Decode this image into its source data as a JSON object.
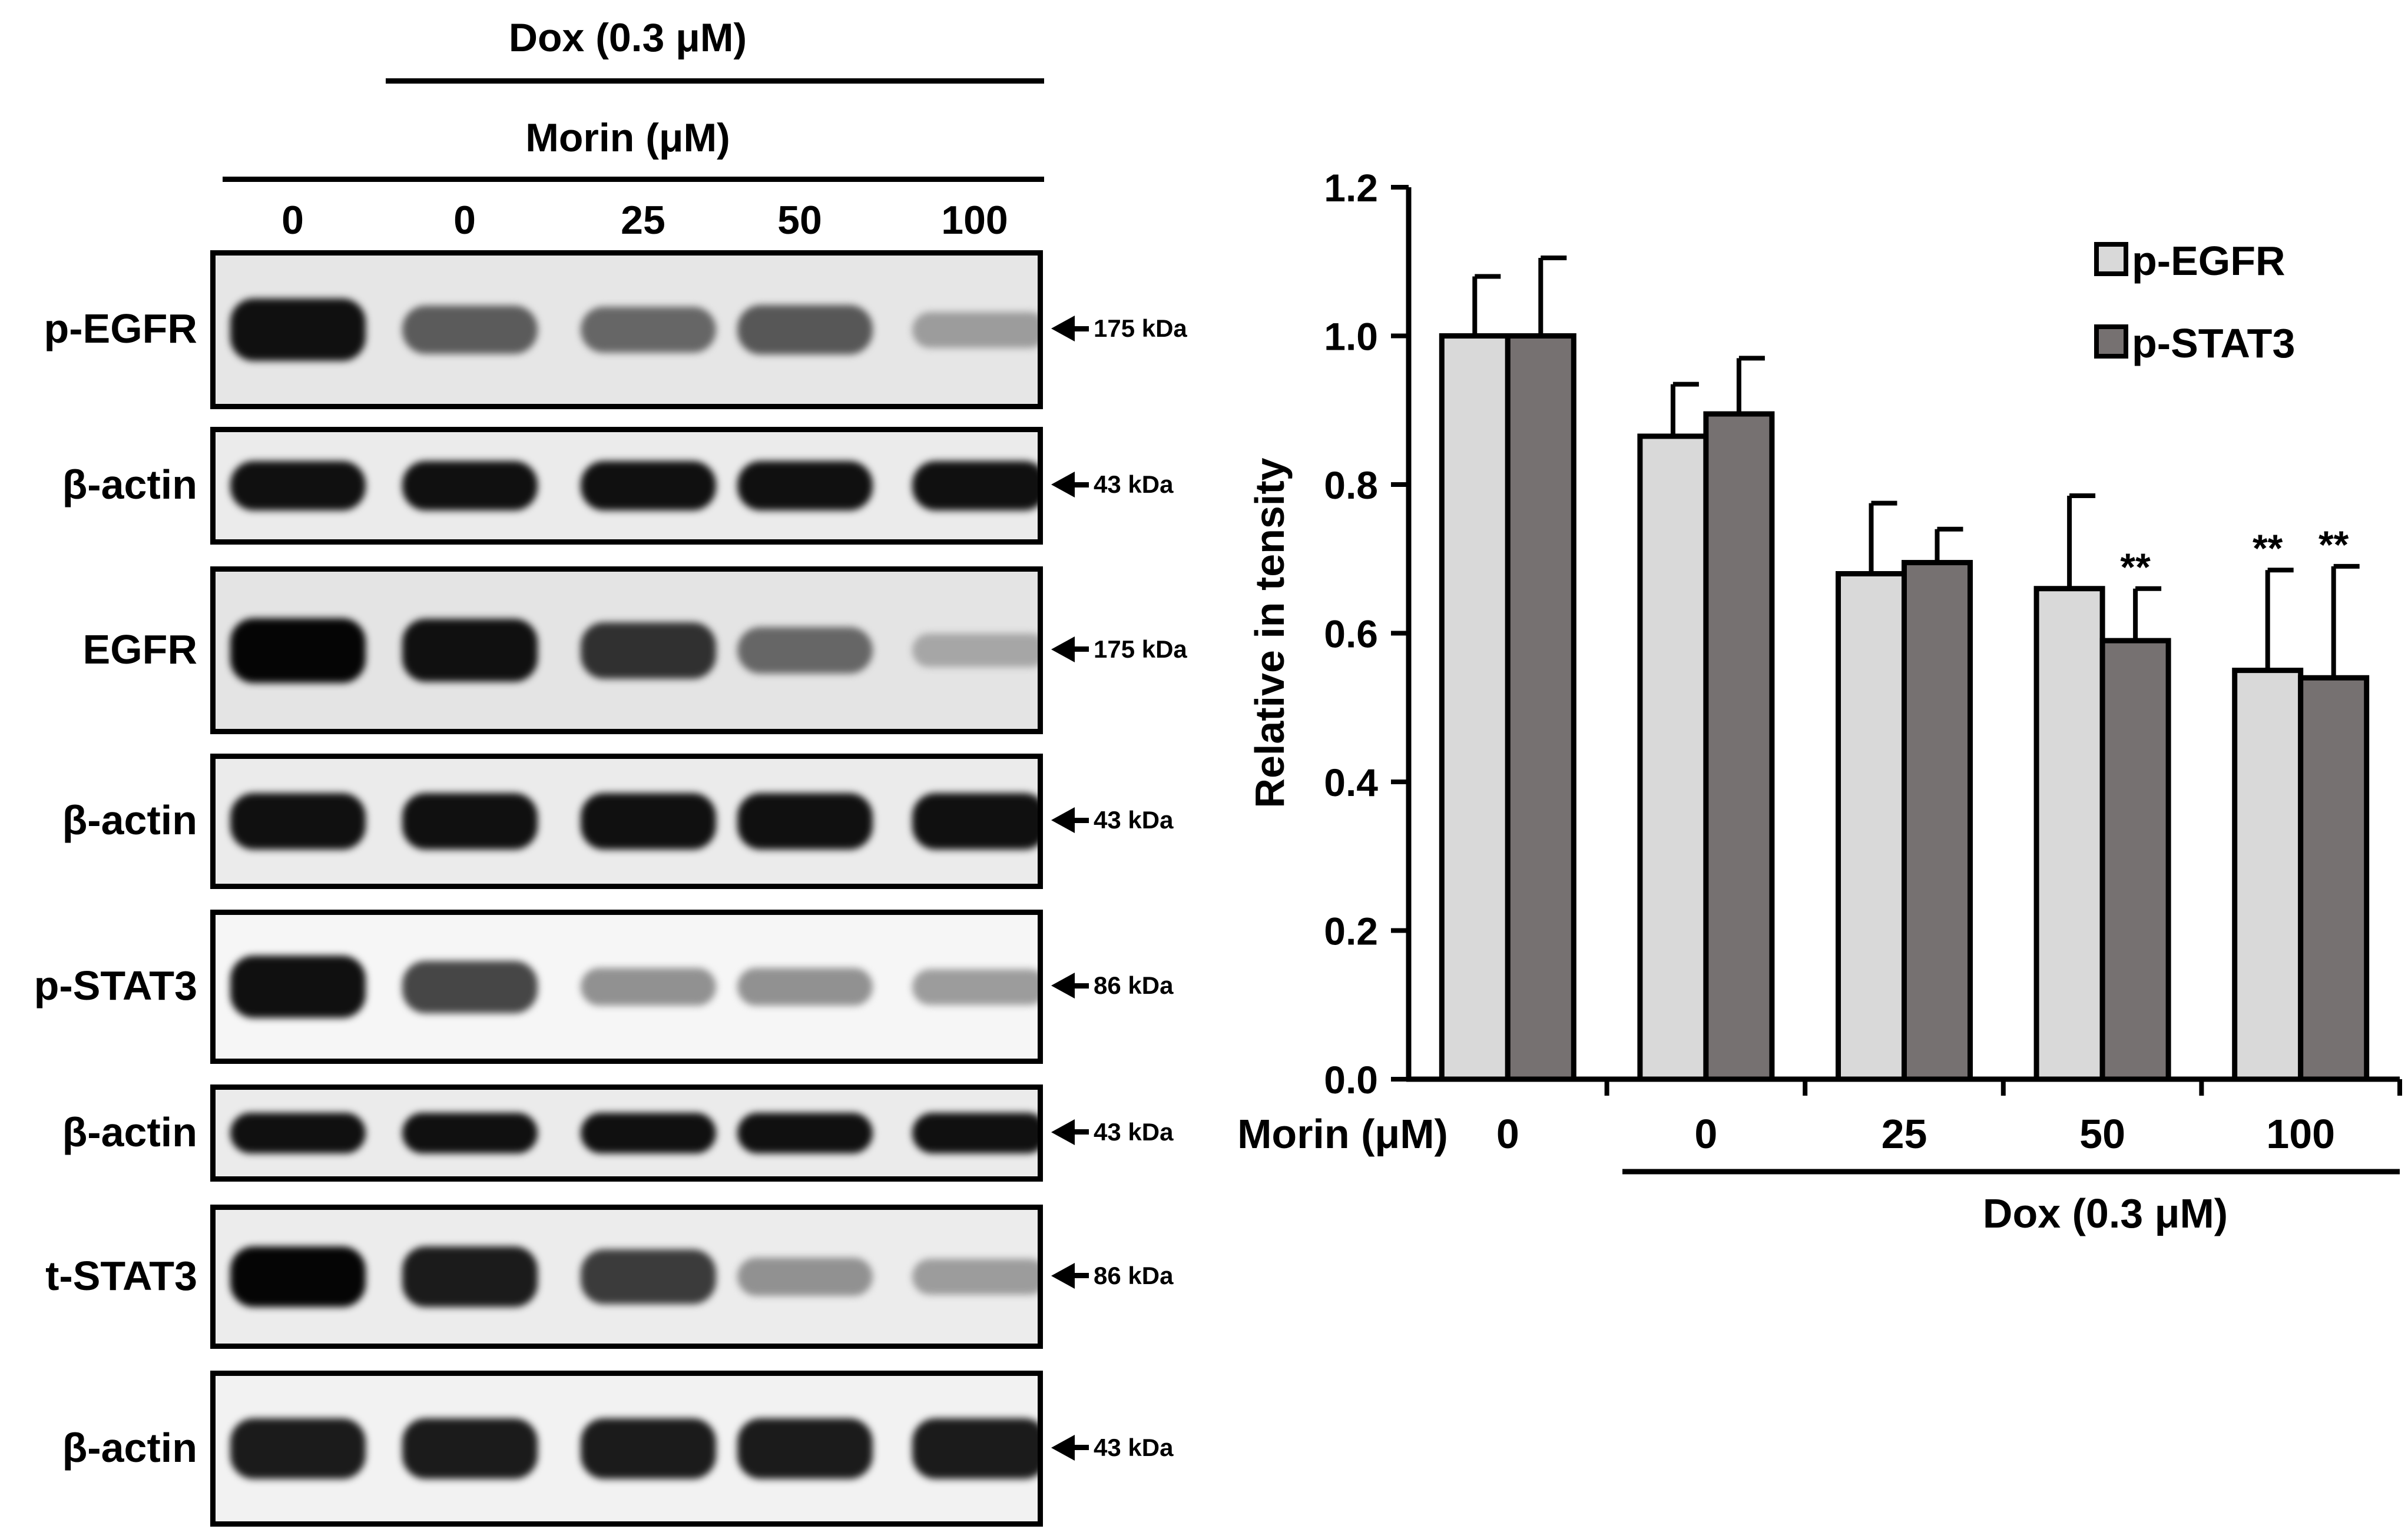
{
  "blot": {
    "dox_header": "Dox (0.3 μM)",
    "morin_header": "Morin (μM)",
    "lanes": [
      "0",
      "0",
      "25",
      "50",
      "100"
    ],
    "panels": [
      {
        "label": "p-EGFR",
        "marker": "175 kDa",
        "intensities": [
          0.95,
          0.6,
          0.55,
          0.62,
          0.3
        ],
        "background": "#e6e6e6"
      },
      {
        "label": "β-actin",
        "marker": "43 kDa",
        "intensities": [
          0.95,
          0.95,
          0.95,
          0.95,
          0.95
        ],
        "background": "#ebebeb"
      },
      {
        "label": "EGFR",
        "marker": "175 kDa",
        "intensities": [
          1.0,
          0.95,
          0.8,
          0.55,
          0.25
        ],
        "background": "#e4e4e4"
      },
      {
        "label": "β-actin",
        "marker": "43 kDa",
        "intensities": [
          0.95,
          0.95,
          0.95,
          0.95,
          0.95
        ],
        "background": "#ebebeb"
      },
      {
        "label": "p-STAT3",
        "marker": "86 kDa",
        "intensities": [
          0.95,
          0.7,
          0.35,
          0.35,
          0.3
        ],
        "background": "#f6f6f6"
      },
      {
        "label": "β-actin",
        "marker": "43 kDa",
        "intensities": [
          0.95,
          0.95,
          0.95,
          0.95,
          0.95
        ],
        "background": "#ebebeb"
      },
      {
        "label": "t-STAT3",
        "marker": "86 kDa",
        "intensities": [
          1.0,
          0.9,
          0.75,
          0.35,
          0.3
        ],
        "background": "#ececec"
      },
      {
        "label": "β-actin",
        "marker": "43 kDa",
        "intensities": [
          0.9,
          0.9,
          0.9,
          0.9,
          0.9
        ],
        "background": "#f2f2f2"
      }
    ]
  },
  "chart_data": {
    "type": "bar",
    "title": "",
    "ylabel": "Relative in tensity",
    "xlabel_prefix": "Morin (μM)",
    "group_label": "Dox (0.3 μM)",
    "categories": [
      "0",
      "0",
      "25",
      "50",
      "100"
    ],
    "ylim": [
      0,
      1.2
    ],
    "yticks": [
      "0.0",
      "0.2",
      "0.4",
      "0.6",
      "0.8",
      "1.0",
      "1.2"
    ],
    "grid": false,
    "legend_position": "top-right",
    "series": [
      {
        "name": "p-EGFR",
        "color": "#d9d9d9",
        "values": [
          1.0,
          0.865,
          0.68,
          0.66,
          0.55
        ],
        "errors": [
          0.08,
          0.07,
          0.095,
          0.125,
          0.135
        ],
        "significance": [
          "",
          "",
          "",
          "",
          "**"
        ]
      },
      {
        "name": "p-STAT3",
        "color": "#767171",
        "values": [
          1.0,
          0.895,
          0.695,
          0.59,
          0.54
        ],
        "errors": [
          0.105,
          0.075,
          0.045,
          0.07,
          0.15
        ],
        "significance": [
          "",
          "",
          "",
          "**",
          "**"
        ]
      }
    ]
  }
}
